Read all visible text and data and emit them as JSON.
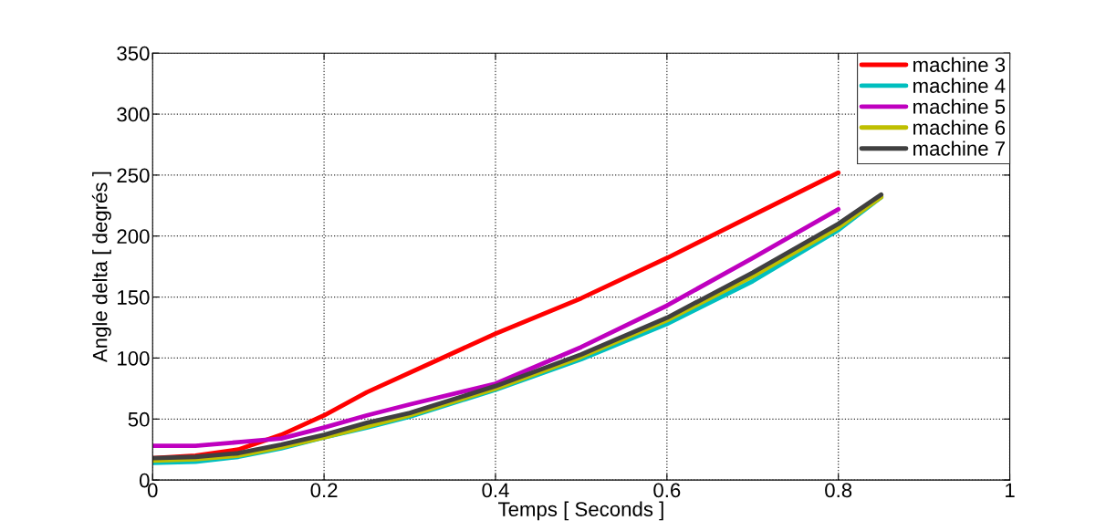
{
  "chart_data": {
    "type": "line",
    "xlabel": "Temps [ Seconds ]",
    "ylabel": "Angle delta [ degrés ]",
    "xlim": [
      0,
      1
    ],
    "ylim": [
      0,
      350
    ],
    "xticks": [
      0,
      0.2,
      0.4,
      0.6,
      0.8,
      1
    ],
    "yticks": [
      0,
      50,
      100,
      150,
      200,
      250,
      300,
      350
    ],
    "grid": true,
    "legend": "top right",
    "line_style": "solid",
    "series": [
      {
        "name": "machine 3",
        "color": "#ff0000",
        "x": [
          0,
          0.05,
          0.1,
          0.15,
          0.2,
          0.25,
          0.3,
          0.4,
          0.5,
          0.6,
          0.7,
          0.8
        ],
        "values": [
          18,
          20,
          25,
          37,
          53,
          72,
          88,
          120,
          149,
          182,
          217,
          252
        ]
      },
      {
        "name": "machine 4",
        "color": "#00bfbf",
        "x": [
          0,
          0.05,
          0.1,
          0.15,
          0.2,
          0.25,
          0.3,
          0.4,
          0.5,
          0.6,
          0.7,
          0.8,
          0.85
        ],
        "values": [
          14,
          15,
          19,
          26,
          35,
          43,
          52,
          74,
          99,
          128,
          163,
          205,
          232
        ]
      },
      {
        "name": "machine 5",
        "color": "#bf00bf",
        "x": [
          0,
          0.05,
          0.1,
          0.15,
          0.2,
          0.25,
          0.3,
          0.4,
          0.5,
          0.6,
          0.7,
          0.8
        ],
        "values": [
          28,
          28,
          31,
          34,
          43,
          53,
          62,
          79,
          109,
          143,
          182,
          222
        ]
      },
      {
        "name": "machine 6",
        "color": "#bfbf00",
        "x": [
          0,
          0.05,
          0.1,
          0.15,
          0.2,
          0.25,
          0.3,
          0.4,
          0.5,
          0.6,
          0.7,
          0.8,
          0.85
        ],
        "values": [
          16,
          17,
          20,
          27,
          35,
          44,
          53,
          75,
          101,
          131,
          167,
          207,
          232
        ]
      },
      {
        "name": "machine 7",
        "color": "#404040",
        "x": [
          0,
          0.05,
          0.1,
          0.15,
          0.2,
          0.25,
          0.3,
          0.4,
          0.5,
          0.6,
          0.7,
          0.8,
          0.85
        ],
        "values": [
          18,
          19,
          22,
          29,
          37,
          47,
          55,
          77,
          103,
          133,
          170,
          210,
          234
        ]
      }
    ]
  }
}
